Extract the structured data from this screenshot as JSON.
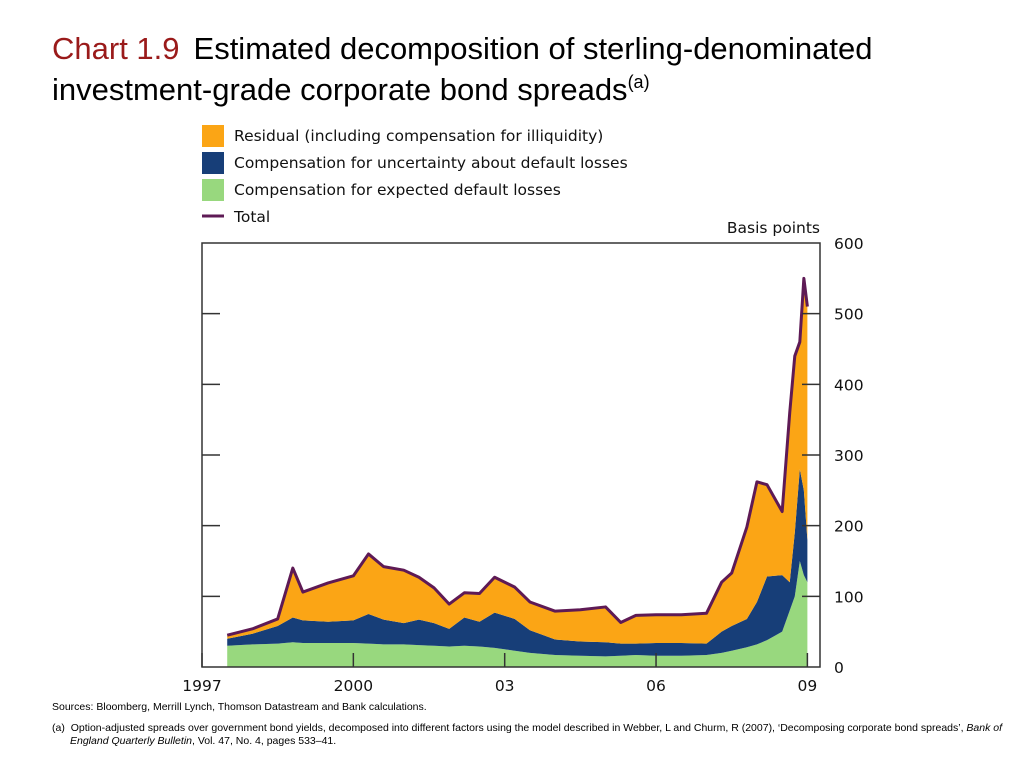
{
  "page": {
    "chart_number": "Chart 1.9",
    "title": "Estimated decomposition of sterling-denominated investment-grade corporate bond spreads",
    "title_superscript": "(a)",
    "sources": "Sources:  Bloomberg, Merrill Lynch, Thomson Datastream and Bank calculations.",
    "footnote_marker": "(a)",
    "footnote_text_1": "Option-adjusted spreads over government bond yields, decomposed into different factors using the model described in Webber, L and Churm, R (2007), ‘Decomposing corporate bond spreads’, ",
    "footnote_journal": "Bank of England Quarterly Bulletin",
    "footnote_text_2": ", Vol. 47, No. 4, pages 533–41."
  },
  "colors": {
    "residual": "#fba515",
    "uncertainty": "#173e78",
    "expected": "#98d87e",
    "total": "#5e1a55",
    "title_number": "#9a1a1a"
  },
  "chart_data": {
    "type": "area",
    "y_axis_label": "Basis points",
    "ylim": [
      0,
      600
    ],
    "y_ticks": [
      0,
      100,
      200,
      300,
      400,
      500,
      600
    ],
    "xlim": [
      1997.0,
      2009.25
    ],
    "x_ticks": [
      {
        "value": 1997,
        "label": "1997"
      },
      {
        "value": 2000,
        "label": "2000"
      },
      {
        "value": 2003,
        "label": "03"
      },
      {
        "value": 2006,
        "label": "06"
      },
      {
        "value": 2009,
        "label": "09"
      }
    ],
    "legend_position": "top",
    "series": [
      {
        "name": "Compensation for expected default losses",
        "key": "expected",
        "kind": "stack"
      },
      {
        "name": "Compensation for uncertainty about default losses",
        "key": "uncertainty",
        "kind": "stack"
      },
      {
        "name": "Residual (including compensation for illiquidity)",
        "key": "residual",
        "kind": "stack"
      },
      {
        "name": "Total",
        "key": "total",
        "kind": "line"
      }
    ],
    "x": [
      1997.5,
      1998.0,
      1998.5,
      1998.8,
      1999.0,
      1999.5,
      2000.0,
      2000.3,
      2000.6,
      2001.0,
      2001.3,
      2001.6,
      2001.9,
      2002.2,
      2002.5,
      2002.8,
      2003.2,
      2003.5,
      2004.0,
      2004.5,
      2005.0,
      2005.3,
      2005.6,
      2006.0,
      2006.5,
      2007.0,
      2007.3,
      2007.5,
      2007.8,
      2008.0,
      2008.2,
      2008.5,
      2008.65,
      2008.75,
      2008.85,
      2008.93,
      2009.0
    ],
    "expected": [
      30,
      32,
      33,
      35,
      34,
      34,
      34,
      33,
      32,
      32,
      31,
      30,
      29,
      30,
      29,
      27,
      23,
      20,
      17,
      16,
      15,
      16,
      17,
      16,
      16,
      17,
      20,
      23,
      28,
      32,
      38,
      50,
      80,
      100,
      150,
      130,
      120
    ],
    "uncertainty": [
      10,
      15,
      25,
      35,
      32,
      30,
      32,
      42,
      35,
      30,
      36,
      32,
      25,
      40,
      35,
      50,
      45,
      32,
      22,
      20,
      20,
      17,
      16,
      18,
      18,
      16,
      30,
      35,
      40,
      60,
      90,
      80,
      40,
      90,
      130,
      120,
      60
    ],
    "residual": [
      5,
      7,
      10,
      70,
      40,
      55,
      63,
      85,
      75,
      75,
      60,
      50,
      35,
      35,
      40,
      50,
      45,
      40,
      40,
      45,
      50,
      30,
      40,
      40,
      40,
      43,
      70,
      75,
      130,
      170,
      130,
      90,
      240,
      250,
      180,
      300,
      330
    ],
    "total": [
      45,
      54,
      68,
      140,
      106,
      119,
      129,
      160,
      142,
      137,
      127,
      112,
      89,
      105,
      104,
      127,
      113,
      92,
      79,
      81,
      85,
      63,
      73,
      74,
      74,
      76,
      120,
      133,
      198,
      262,
      258,
      220,
      360,
      440,
      460,
      550,
      510
    ]
  }
}
